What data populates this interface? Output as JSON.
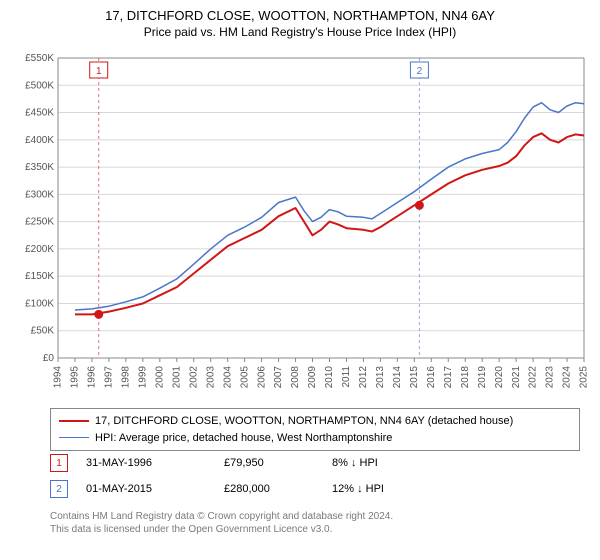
{
  "title_line1": "17, DITCHFORD CLOSE, WOOTTON, NORTHAMPTON, NN4 6AY",
  "title_line2": "Price paid vs. HM Land Registry's House Price Index (HPI)",
  "chart": {
    "type": "line",
    "background_color": "#ffffff",
    "grid_color": "#d8d8d8",
    "plot_border": "#888888",
    "y_prefix": "£",
    "y_suffix": "K",
    "ylim": [
      0,
      550
    ],
    "ytick_step": 50,
    "yticks": [
      0,
      50,
      100,
      150,
      200,
      250,
      300,
      350,
      400,
      450,
      500,
      550
    ],
    "xlim": [
      1994,
      2025
    ],
    "xticks": [
      1994,
      1995,
      1996,
      1997,
      1998,
      1999,
      2000,
      2001,
      2002,
      2003,
      2004,
      2005,
      2006,
      2007,
      2008,
      2009,
      2010,
      2011,
      2012,
      2013,
      2014,
      2015,
      2016,
      2017,
      2018,
      2019,
      2020,
      2021,
      2022,
      2023,
      2024,
      2025
    ],
    "axis_fontsize": 10,
    "axis_color": "#555555",
    "series": [
      {
        "name": "property",
        "label": "17, DITCHFORD CLOSE, WOOTTON, NORTHAMPTON, NN4 6AY (detached house)",
        "color": "#d01717",
        "line_width": 2,
        "data": [
          [
            1995,
            80
          ],
          [
            1996,
            80
          ],
          [
            1997,
            85
          ],
          [
            1998,
            92
          ],
          [
            1999,
            100
          ],
          [
            2000,
            115
          ],
          [
            2001,
            130
          ],
          [
            2002,
            155
          ],
          [
            2003,
            180
          ],
          [
            2004,
            205
          ],
          [
            2005,
            220
          ],
          [
            2006,
            235
          ],
          [
            2007,
            260
          ],
          [
            2008,
            275
          ],
          [
            2008.5,
            250
          ],
          [
            2009,
            225
          ],
          [
            2009.5,
            235
          ],
          [
            2010,
            250
          ],
          [
            2010.5,
            245
          ],
          [
            2011,
            238
          ],
          [
            2012,
            235
          ],
          [
            2012.5,
            232
          ],
          [
            2013,
            240
          ],
          [
            2014,
            260
          ],
          [
            2015,
            280
          ],
          [
            2016,
            300
          ],
          [
            2017,
            320
          ],
          [
            2018,
            335
          ],
          [
            2019,
            345
          ],
          [
            2020,
            352
          ],
          [
            2020.5,
            358
          ],
          [
            2021,
            370
          ],
          [
            2021.5,
            390
          ],
          [
            2022,
            405
          ],
          [
            2022.5,
            412
          ],
          [
            2023,
            400
          ],
          [
            2023.5,
            395
          ],
          [
            2024,
            405
          ],
          [
            2024.5,
            410
          ],
          [
            2025,
            408
          ]
        ]
      },
      {
        "name": "hpi",
        "label": "HPI: Average price, detached house, West Northamptonshire",
        "color": "#4a76c7",
        "line_width": 1.5,
        "data": [
          [
            1995,
            88
          ],
          [
            1996,
            90
          ],
          [
            1997,
            95
          ],
          [
            1998,
            103
          ],
          [
            1999,
            112
          ],
          [
            2000,
            128
          ],
          [
            2001,
            145
          ],
          [
            2002,
            172
          ],
          [
            2003,
            200
          ],
          [
            2004,
            225
          ],
          [
            2005,
            240
          ],
          [
            2006,
            258
          ],
          [
            2007,
            285
          ],
          [
            2008,
            295
          ],
          [
            2008.5,
            270
          ],
          [
            2009,
            250
          ],
          [
            2009.5,
            258
          ],
          [
            2010,
            272
          ],
          [
            2010.5,
            268
          ],
          [
            2011,
            260
          ],
          [
            2012,
            258
          ],
          [
            2012.5,
            255
          ],
          [
            2013,
            265
          ],
          [
            2014,
            285
          ],
          [
            2015,
            305
          ],
          [
            2016,
            328
          ],
          [
            2017,
            350
          ],
          [
            2018,
            365
          ],
          [
            2019,
            375
          ],
          [
            2020,
            382
          ],
          [
            2020.5,
            395
          ],
          [
            2021,
            415
          ],
          [
            2021.5,
            440
          ],
          [
            2022,
            460
          ],
          [
            2022.5,
            468
          ],
          [
            2023,
            455
          ],
          [
            2023.5,
            450
          ],
          [
            2024,
            462
          ],
          [
            2024.5,
            468
          ],
          [
            2025,
            466
          ]
        ]
      }
    ],
    "markers": [
      {
        "label": "1",
        "year": 1996.4,
        "value": 80,
        "ref_color": "#d01717",
        "dash_color": "#d01717",
        "box_y": 38
      },
      {
        "label": "2",
        "year": 2015.3,
        "value": 280,
        "ref_color": "#4a76c7",
        "dash_color": "#4a76c7",
        "box_y": 38
      }
    ]
  },
  "legend": {
    "items": [
      {
        "color": "#d01717",
        "label": "17, DITCHFORD CLOSE, WOOTTON, NORTHAMPTON, NN4 6AY (detached house)",
        "width": 2
      },
      {
        "color": "#4a76c7",
        "label": "HPI: Average price, detached house, West Northamptonshire",
        "width": 1.5
      }
    ]
  },
  "transactions": [
    {
      "marker": "1",
      "color": "#d01717",
      "date": "31-MAY-1996",
      "price": "£79,950",
      "pct": "8% ↓ HPI"
    },
    {
      "marker": "2",
      "color": "#4a76c7",
      "date": "01-MAY-2015",
      "price": "£280,000",
      "pct": "12% ↓ HPI"
    }
  ],
  "footer_line1": "Contains HM Land Registry data © Crown copyright and database right 2024.",
  "footer_line2": "This data is licensed under the Open Government Licence v3.0."
}
